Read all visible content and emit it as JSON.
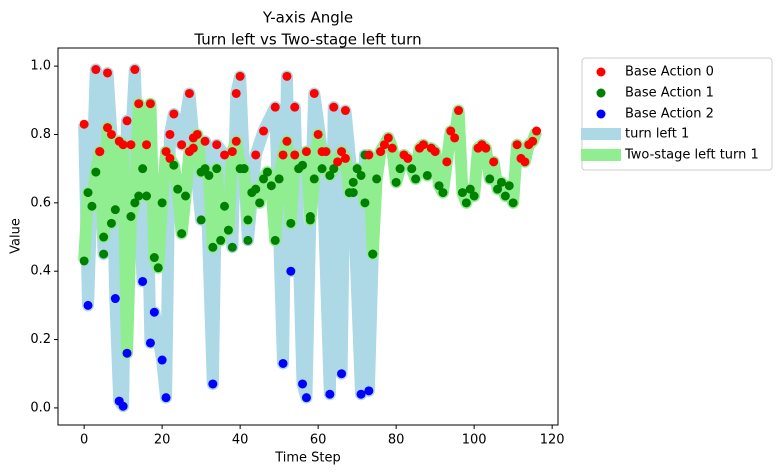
{
  "chart_data": {
    "type": "line",
    "title": "Y-axis Angle",
    "subtitle": "Turn left vs Two-stage left turn",
    "xlabel": "Time Step",
    "ylabel": "Value",
    "xlim": [
      -6.7,
      121.5
    ],
    "ylim": [
      -0.05,
      1.053
    ],
    "xticks": [
      0,
      20,
      40,
      60,
      80,
      100,
      120
    ],
    "yticks": [
      {
        "value": 0,
        "label": "0.0"
      },
      0.2,
      0.4,
      0.6,
      0.8,
      {
        "value": 1,
        "label": "1.0"
      }
    ],
    "legend": "outside upper right",
    "action_legend": [
      {
        "name": "Base Action 0",
        "color": "#ff0000"
      },
      {
        "name": "Base Action 1",
        "color": "#008000"
      },
      {
        "name": "Base Action 2",
        "color": "#0000ff"
      }
    ],
    "series": [
      {
        "name": "turn left 1",
        "color": "#add8e6",
        "x": [
          0,
          1,
          3,
          4,
          5,
          6,
          7,
          8,
          9,
          10,
          11,
          12,
          13,
          14,
          15,
          16,
          17,
          18,
          20,
          21,
          22,
          23,
          25,
          27,
          28,
          30,
          31,
          33,
          34,
          36,
          38,
          39,
          40,
          41,
          42,
          44,
          46,
          49,
          51,
          52,
          53,
          54,
          56,
          57,
          58,
          59,
          61,
          63,
          64,
          66,
          67,
          69,
          71,
          72,
          73,
          74
        ],
        "values": [
          0.83,
          0.3,
          0.99,
          0.75,
          0.45,
          0.98,
          0.8,
          0.32,
          0.02,
          0.005,
          0.84,
          0.77,
          0.99,
          0.62,
          0.37,
          0.77,
          0.19,
          0.28,
          0.14,
          0.03,
          0.8,
          0.86,
          0.77,
          0.92,
          0.79,
          0.55,
          0.78,
          0.07,
          0.77,
          0.74,
          0.47,
          0.92,
          0.97,
          0.7,
          0.49,
          0.74,
          0.81,
          0.88,
          0.13,
          0.97,
          0.4,
          0.88,
          0.07,
          0.03,
          0.56,
          0.92,
          0.75,
          0.04,
          0.88,
          0.1,
          0.87,
          0.63,
          0.04,
          0.74,
          0.05,
          0.45
        ],
        "actions": [
          0,
          2,
          0,
          0,
          1,
          0,
          0,
          2,
          2,
          2,
          0,
          0,
          0,
          1,
          2,
          0,
          2,
          2,
          2,
          2,
          0,
          0,
          0,
          0,
          0,
          1,
          0,
          2,
          0,
          0,
          1,
          0,
          0,
          1,
          1,
          0,
          0,
          0,
          2,
          0,
          2,
          0,
          2,
          2,
          1,
          0,
          0,
          2,
          0,
          2,
          0,
          1,
          2,
          1,
          2,
          1
        ]
      },
      {
        "name": "Two-stage left turn 1",
        "color": "#90ee90",
        "x": [
          0,
          1,
          2,
          3,
          4,
          5,
          6,
          7,
          8,
          9,
          10,
          11,
          12,
          13,
          14,
          15,
          16,
          17,
          18,
          19,
          20,
          21,
          22,
          23,
          24,
          25,
          26,
          27,
          28,
          29,
          30,
          31,
          32,
          33,
          34,
          35,
          36,
          37,
          38,
          39,
          40,
          41,
          42,
          43,
          44,
          45,
          46,
          47,
          48,
          49,
          50,
          51,
          52,
          53,
          54,
          55,
          56,
          57,
          58,
          59,
          60,
          61,
          62,
          63,
          64,
          65,
          66,
          67,
          68,
          69,
          70,
          71,
          72,
          73,
          74,
          75,
          76,
          77,
          78,
          79,
          80,
          81,
          82,
          83,
          84,
          85,
          86,
          87,
          88,
          89,
          90,
          91,
          92,
          93,
          94,
          95,
          96,
          97,
          98,
          99,
          100,
          101,
          102,
          103,
          104,
          105,
          106,
          107,
          108,
          109,
          110,
          111,
          112,
          113,
          114,
          115,
          116
        ],
        "values": [
          0.43,
          0.63,
          0.59,
          0.69,
          0.75,
          0.5,
          0.82,
          0.54,
          0.58,
          0.78,
          0.77,
          0.16,
          0.56,
          0.6,
          0.89,
          0.7,
          0.62,
          0.89,
          0.44,
          0.41,
          0.6,
          0.75,
          0.73,
          0.71,
          0.64,
          0.51,
          0.62,
          0.75,
          0.76,
          0.8,
          0.69,
          0.7,
          0.68,
          0.47,
          0.7,
          0.49,
          0.59,
          0.52,
          0.75,
          0.78,
          0.7,
          0.7,
          0.55,
          0.63,
          0.64,
          0.6,
          0.67,
          0.69,
          0.65,
          0.49,
          0.67,
          0.74,
          0.78,
          0.54,
          0.74,
          0.7,
          0.71,
          0.75,
          0.55,
          0.67,
          0.8,
          0.7,
          0.75,
          0.68,
          0.7,
          0.72,
          0.75,
          0.73,
          0.63,
          0.66,
          0.7,
          0.68,
          0.6,
          0.74,
          0.45,
          0.67,
          0.75,
          0.77,
          0.79,
          0.76,
          0.66,
          0.7,
          0.74,
          0.73,
          0.7,
          0.67,
          0.76,
          0.77,
          0.68,
          0.76,
          0.75,
          0.65,
          0.63,
          0.72,
          0.81,
          0.79,
          0.87,
          0.63,
          0.6,
          0.64,
          0.62,
          0.76,
          0.77,
          0.76,
          0.67,
          0.72,
          0.64,
          0.66,
          0.62,
          0.65,
          0.6,
          0.77,
          0.73,
          0.72,
          0.77,
          0.78,
          0.81
        ],
        "actions": [
          1,
          1,
          1,
          1,
          0,
          1,
          0,
          1,
          1,
          0,
          0,
          2,
          1,
          1,
          0,
          1,
          1,
          0,
          1,
          1,
          1,
          0,
          0,
          1,
          1,
          1,
          1,
          0,
          0,
          0,
          1,
          1,
          1,
          1,
          1,
          1,
          1,
          1,
          0,
          0,
          1,
          1,
          1,
          1,
          1,
          1,
          1,
          1,
          1,
          1,
          1,
          0,
          0,
          1,
          0,
          1,
          1,
          0,
          1,
          1,
          0,
          1,
          0,
          1,
          1,
          0,
          0,
          0,
          1,
          1,
          1,
          1,
          1,
          0,
          1,
          1,
          0,
          0,
          0,
          0,
          1,
          1,
          0,
          0,
          1,
          1,
          0,
          0,
          1,
          0,
          0,
          1,
          1,
          0,
          0,
          0,
          0,
          1,
          1,
          1,
          1,
          0,
          0,
          0,
          1,
          0,
          1,
          1,
          1,
          1,
          1,
          0,
          0,
          0,
          0,
          0,
          0
        ]
      }
    ]
  }
}
